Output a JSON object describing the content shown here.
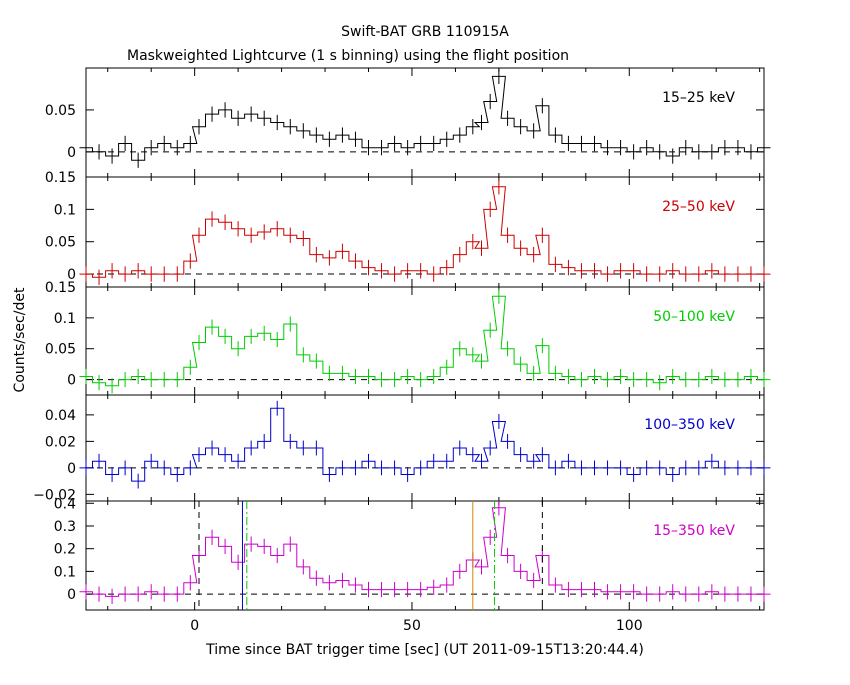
{
  "chart_data": {
    "type": "line",
    "title": "Swift-BAT GRB 110915A",
    "subtitle": "Maskweighted Lightcurve (1 s binning) using the flight position",
    "xlabel": "Time since BAT trigger time [sec] (UT 2011-09-15T13:20:44.4)",
    "ylabel": "Counts/sec/det",
    "xlim": [
      -25,
      131
    ],
    "x_ticks": [
      0,
      50,
      100
    ],
    "x_tick_labels": [
      "0",
      "50",
      "100"
    ],
    "panels": [
      {
        "name": "15-25 keV",
        "label": "15–25 keV",
        "color": "#000000",
        "ylim": [
          -0.03,
          0.1
        ],
        "y_ticks": [
          0,
          0.05
        ],
        "y_tick_labels": [
          "0",
          "0.05"
        ],
        "x": [
          -25,
          -22,
          -19,
          -16,
          -13,
          -10,
          -7,
          -4,
          -1,
          1,
          4,
          7,
          10,
          13,
          16,
          19,
          22,
          25,
          28,
          31,
          34,
          37,
          40,
          43,
          46,
          49,
          52,
          55,
          58,
          61,
          64,
          66,
          68,
          70,
          72,
          75,
          78,
          80,
          83,
          86,
          89,
          92,
          95,
          98,
          101,
          104,
          107,
          110,
          113,
          116,
          119,
          122,
          125,
          128,
          131
        ],
        "y": [
          0.005,
          0.0,
          -0.005,
          0.01,
          -0.01,
          0.005,
          0.01,
          0.005,
          0.01,
          0.03,
          0.045,
          0.05,
          0.04,
          0.045,
          0.04,
          0.035,
          0.03,
          0.025,
          0.02,
          0.015,
          0.02,
          0.015,
          0.005,
          0.005,
          0.01,
          0.005,
          0.01,
          0.01,
          0.015,
          0.02,
          0.03,
          0.035,
          0.06,
          0.09,
          0.04,
          0.03,
          0.025,
          0.055,
          0.02,
          0.01,
          0.01,
          0.01,
          0.005,
          0.005,
          0.0,
          0.005,
          0.0,
          -0.005,
          0.005,
          0.0,
          0.0,
          0.005,
          0.005,
          0.0,
          0.005
        ]
      },
      {
        "name": "25-50 keV",
        "label": "25–50 keV",
        "color": "#cc0000",
        "ylim": [
          -0.02,
          0.15
        ],
        "y_ticks": [
          0,
          0.05,
          0.1,
          0.15
        ],
        "y_tick_labels": [
          "0",
          "0.05",
          "0.1",
          "0.15"
        ],
        "x": [
          -25,
          -22,
          -19,
          -16,
          -13,
          -10,
          -7,
          -4,
          -1,
          1,
          4,
          7,
          10,
          13,
          16,
          19,
          22,
          25,
          28,
          31,
          34,
          37,
          40,
          43,
          46,
          49,
          52,
          55,
          58,
          61,
          64,
          66,
          68,
          70,
          72,
          75,
          78,
          80,
          83,
          86,
          89,
          92,
          95,
          98,
          101,
          104,
          107,
          110,
          113,
          116,
          119,
          122,
          125,
          128,
          131
        ],
        "y": [
          0.0,
          -0.005,
          0.005,
          0.0,
          0.005,
          0.0,
          0.0,
          0.0,
          0.02,
          0.06,
          0.085,
          0.08,
          0.07,
          0.06,
          0.065,
          0.07,
          0.06,
          0.055,
          0.03,
          0.025,
          0.035,
          0.02,
          0.01,
          0.005,
          0.0,
          0.005,
          0.005,
          0.0,
          0.01,
          0.03,
          0.05,
          0.04,
          0.1,
          0.135,
          0.06,
          0.04,
          0.03,
          0.06,
          0.015,
          0.01,
          0.005,
          0.005,
          0.0,
          0.005,
          0.005,
          0.0,
          0.0,
          0.005,
          0.0,
          0.0,
          0.005,
          0.0,
          0.0,
          0.0,
          0.0
        ]
      },
      {
        "name": "50-100 keV",
        "label": "50–100 keV",
        "color": "#00cc00",
        "ylim": [
          -0.025,
          0.15
        ],
        "y_ticks": [
          0,
          0.05,
          0.1,
          0.15
        ],
        "y_tick_labels": [
          "0",
          "0.05",
          "0.1",
          "0.15"
        ],
        "x": [
          -25,
          -22,
          -19,
          -16,
          -13,
          -10,
          -7,
          -4,
          -1,
          1,
          4,
          7,
          10,
          13,
          16,
          19,
          22,
          25,
          28,
          31,
          34,
          37,
          40,
          43,
          46,
          49,
          52,
          55,
          58,
          61,
          64,
          66,
          68,
          70,
          72,
          75,
          78,
          80,
          83,
          86,
          89,
          92,
          95,
          98,
          101,
          104,
          107,
          110,
          113,
          116,
          119,
          122,
          125,
          128,
          131
        ],
        "y": [
          0.005,
          -0.005,
          -0.01,
          0.0,
          0.005,
          0.0,
          0.0,
          0.0,
          0.02,
          0.06,
          0.085,
          0.07,
          0.05,
          0.07,
          0.075,
          0.065,
          0.09,
          0.04,
          0.03,
          0.01,
          0.01,
          0.005,
          0.005,
          0.0,
          0.0,
          0.005,
          0.0,
          0.005,
          0.02,
          0.05,
          0.04,
          0.03,
          0.08,
          0.135,
          0.05,
          0.025,
          0.01,
          0.055,
          0.01,
          0.005,
          0.0,
          0.005,
          0.0,
          0.005,
          0.0,
          0.0,
          -0.005,
          0.005,
          0.0,
          0.0,
          0.005,
          0.0,
          0.0,
          0.005,
          0.0
        ]
      },
      {
        "name": "100-350 keV",
        "label": "100–350 keV",
        "color": "#0000cc",
        "ylim": [
          -0.025,
          0.055
        ],
        "y_ticks": [
          -0.02,
          0,
          0.02,
          0.04
        ],
        "y_tick_labels": [
          "−0.02",
          "0",
          "0.02",
          "0.04"
        ],
        "x": [
          -25,
          -22,
          -19,
          -16,
          -13,
          -10,
          -7,
          -4,
          -1,
          1,
          4,
          7,
          10,
          13,
          16,
          19,
          22,
          25,
          28,
          31,
          34,
          37,
          40,
          43,
          46,
          49,
          52,
          55,
          58,
          61,
          64,
          66,
          68,
          70,
          72,
          75,
          78,
          80,
          83,
          86,
          89,
          92,
          95,
          98,
          101,
          104,
          107,
          110,
          113,
          116,
          119,
          122,
          125,
          128,
          131
        ],
        "y": [
          0.0,
          0.005,
          -0.005,
          0.0,
          -0.01,
          0.005,
          0.0,
          -0.005,
          0.0,
          0.01,
          0.015,
          0.01,
          0.005,
          0.015,
          0.02,
          0.045,
          0.02,
          0.015,
          0.015,
          -0.005,
          0.0,
          0.0,
          0.005,
          0.0,
          0.0,
          -0.005,
          0.0,
          0.005,
          0.005,
          0.015,
          0.01,
          0.005,
          0.015,
          0.035,
          0.02,
          0.01,
          0.005,
          0.01,
          0.0,
          0.005,
          0.0,
          0.0,
          0.0,
          0.0,
          -0.005,
          0.0,
          0.0,
          -0.005,
          0.0,
          0.0,
          0.005,
          0.0,
          0.0,
          0.0,
          0.0
        ]
      },
      {
        "name": "15-350 keV",
        "label": "15–350 keV",
        "color": "#cc00cc",
        "ylim": [
          -0.07,
          0.41
        ],
        "y_ticks": [
          0,
          0.1,
          0.2,
          0.3,
          0.4
        ],
        "y_tick_labels": [
          "0",
          "0.1",
          "0.2",
          "0.3",
          "0.4"
        ],
        "x": [
          -25,
          -22,
          -19,
          -16,
          -13,
          -10,
          -7,
          -4,
          -1,
          1,
          4,
          7,
          10,
          13,
          16,
          19,
          22,
          25,
          28,
          31,
          34,
          37,
          40,
          43,
          46,
          49,
          52,
          55,
          58,
          61,
          64,
          66,
          68,
          70,
          72,
          75,
          78,
          80,
          83,
          86,
          89,
          92,
          95,
          98,
          101,
          104,
          107,
          110,
          113,
          116,
          119,
          122,
          125,
          128,
          131
        ],
        "y": [
          0.01,
          0.0,
          -0.01,
          0.0,
          0.0,
          0.01,
          0.0,
          0.0,
          0.05,
          0.17,
          0.25,
          0.21,
          0.14,
          0.22,
          0.21,
          0.17,
          0.22,
          0.12,
          0.07,
          0.05,
          0.06,
          0.04,
          0.02,
          0.02,
          0.02,
          0.02,
          0.02,
          0.03,
          0.04,
          0.1,
          0.15,
          0.12,
          0.25,
          0.38,
          0.17,
          0.1,
          0.06,
          0.17,
          0.04,
          0.02,
          0.02,
          0.02,
          0.01,
          0.01,
          0.01,
          0.0,
          0.0,
          0.01,
          0.0,
          0.0,
          0.01,
          0.0,
          0.0,
          0.0,
          0.0
        ],
        "markers": [
          {
            "x": 1,
            "color": "#000000",
            "style": "dashed"
          },
          {
            "x": 11,
            "color": "#0000cc",
            "style": "solid"
          },
          {
            "x": 12,
            "color": "#00cc00",
            "style": "dashdot"
          },
          {
            "x": 64,
            "color": "#cc8800",
            "style": "solid"
          },
          {
            "x": 69,
            "color": "#00cc00",
            "style": "dashdot"
          },
          {
            "x": 80,
            "color": "#000000",
            "style": "dashed"
          }
        ]
      }
    ]
  }
}
